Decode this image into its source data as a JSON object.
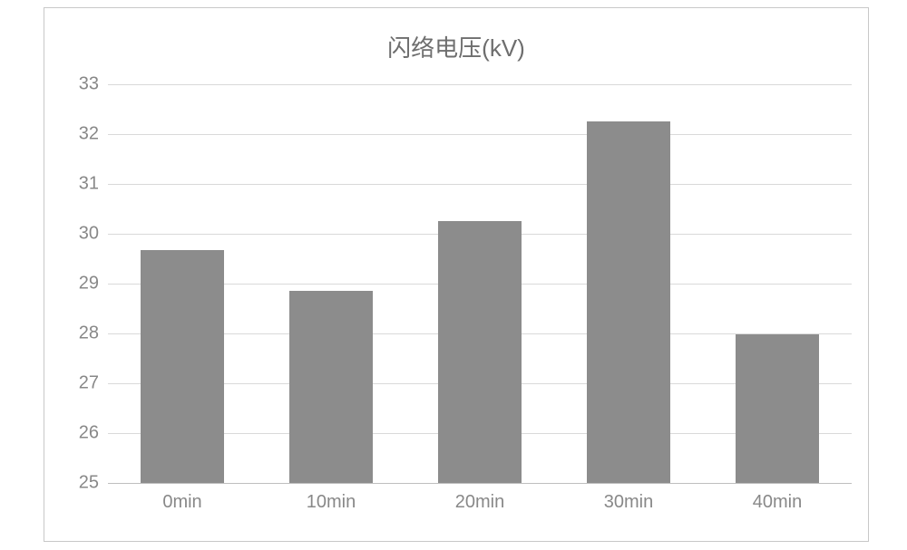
{
  "chart": {
    "type": "bar",
    "title": "闪络电压(kV)",
    "title_fontsize": 26,
    "title_color": "#6e6e6e",
    "background_color": "#ffffff",
    "border_color": "#c8c8c8",
    "grid_color": "#d9d9d9",
    "axis_line_color": "#bfbfbf",
    "tick_label_color": "#888888",
    "tick_label_fontsize": 20,
    "bar_color": "#8c8c8c",
    "bar_width": 0.56,
    "ylim": [
      25,
      33
    ],
    "ytick_step": 1,
    "yticks": [
      25,
      26,
      27,
      28,
      29,
      30,
      31,
      32,
      33
    ],
    "categories": [
      "0min",
      "10min",
      "20min",
      "30min",
      "40min"
    ],
    "values": [
      29.67,
      28.85,
      30.25,
      32.25,
      27.98
    ]
  }
}
